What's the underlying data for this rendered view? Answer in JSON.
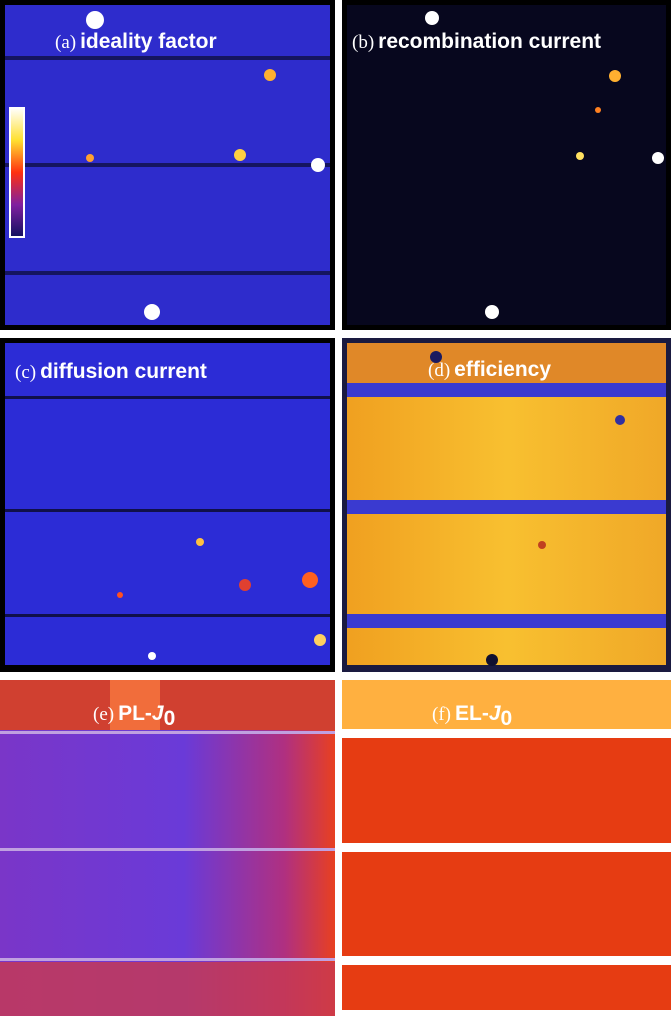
{
  "panels": [
    {
      "letter": "(a)",
      "title": "ideality factor"
    },
    {
      "letter": "(b)",
      "title": "recombination current"
    },
    {
      "letter": "(c)",
      "title": "diffusion current"
    },
    {
      "letter": "(d)",
      "title": "efficiency"
    },
    {
      "letter": "(e)",
      "title_prefix": "PL-",
      "title_italic": "J",
      "subscript": "0"
    },
    {
      "letter": "(f)",
      "title_prefix": "EL-",
      "title_italic": "J",
      "subscript": "0"
    }
  ]
}
